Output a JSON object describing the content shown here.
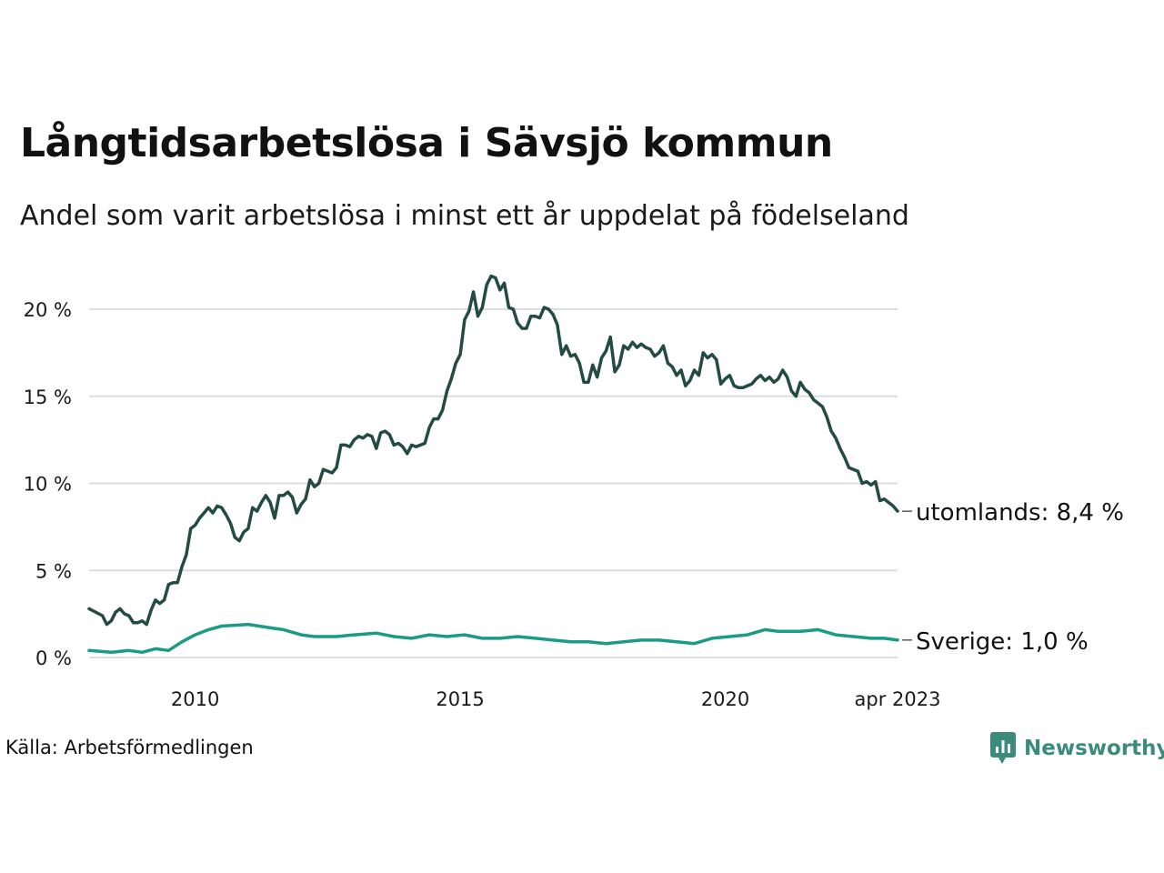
{
  "header": {
    "title": "Långtidsarbetslösa i Sävsjö kommun",
    "subtitle": "Andel som varit arbetslösa i minst ett år uppdelat på födelseland"
  },
  "footer": {
    "source": "Källa: Arbetsförmedlingen",
    "brand": "Newsworthy"
  },
  "colors": {
    "utomlands": "#234b43",
    "sverige": "#1a9b86",
    "grid": "#dddddd",
    "brand": "#3a8b7b"
  },
  "chart_data": {
    "type": "line",
    "title": "Långtidsarbetslösa i Sävsjö kommun",
    "subtitle": "Andel som varit arbetslösa i minst ett år uppdelat på födelseland",
    "xlabel": "",
    "ylabel": "",
    "x_ticks": [
      {
        "label": "2010",
        "t": 2010.0
      },
      {
        "label": "2015",
        "t": 2015.0
      },
      {
        "label": "2020",
        "t": 2020.0
      },
      {
        "label": "apr 2023",
        "t": 2023.25
      }
    ],
    "y_ticks": [
      {
        "label": "0 %",
        "v": 0
      },
      {
        "label": "5 %",
        "v": 5
      },
      {
        "label": "10 %",
        "v": 10
      },
      {
        "label": "15 %",
        "v": 15
      },
      {
        "label": "20 %",
        "v": 20
      }
    ],
    "ylim": [
      0,
      22
    ],
    "xlim": [
      "2008-01",
      "2023-04"
    ],
    "grid": true,
    "series": [
      {
        "name": "utomlands",
        "end_label": "utomlands: 8,4 %",
        "color": "#234b43",
        "points": [
          [
            "2008-01",
            2.8
          ],
          [
            "2008-04",
            2.4
          ],
          [
            "2008-05",
            1.9
          ],
          [
            "2008-06",
            2.1
          ],
          [
            "2008-07",
            2.6
          ],
          [
            "2008-08",
            2.8
          ],
          [
            "2008-09",
            2.5
          ],
          [
            "2008-10",
            2.4
          ],
          [
            "2008-11",
            2.0
          ],
          [
            "2008-12",
            2.0
          ],
          [
            "2009-01",
            2.1
          ],
          [
            "2009-02",
            1.9
          ],
          [
            "2009-03",
            2.7
          ],
          [
            "2009-04",
            3.3
          ],
          [
            "2009-05",
            3.1
          ],
          [
            "2009-06",
            3.3
          ],
          [
            "2009-07",
            4.2
          ],
          [
            "2009-08",
            4.3
          ],
          [
            "2009-09",
            4.3
          ],
          [
            "2009-10",
            5.2
          ],
          [
            "2009-11",
            5.9
          ],
          [
            "2009-12",
            7.4
          ],
          [
            "2010-01",
            7.6
          ],
          [
            "2010-02",
            8.0
          ],
          [
            "2010-03",
            8.3
          ],
          [
            "2010-04",
            8.6
          ],
          [
            "2010-05",
            8.3
          ],
          [
            "2010-06",
            8.7
          ],
          [
            "2010-07",
            8.6
          ],
          [
            "2010-08",
            8.2
          ],
          [
            "2010-09",
            7.7
          ],
          [
            "2010-10",
            6.9
          ],
          [
            "2010-11",
            6.7
          ],
          [
            "2010-12",
            7.2
          ],
          [
            "2011-01",
            7.4
          ],
          [
            "2011-02",
            8.6
          ],
          [
            "2011-03",
            8.4
          ],
          [
            "2011-04",
            8.9
          ],
          [
            "2011-05",
            9.3
          ],
          [
            "2011-06",
            8.9
          ],
          [
            "2011-07",
            8.0
          ],
          [
            "2011-08",
            9.3
          ],
          [
            "2011-09",
            9.3
          ],
          [
            "2011-10",
            9.5
          ],
          [
            "2011-11",
            9.2
          ],
          [
            "2011-12",
            8.3
          ],
          [
            "2012-01",
            8.8
          ],
          [
            "2012-02",
            9.1
          ],
          [
            "2012-03",
            10.2
          ],
          [
            "2012-04",
            9.8
          ],
          [
            "2012-05",
            10.0
          ],
          [
            "2012-06",
            10.8
          ],
          [
            "2012-07",
            10.7
          ],
          [
            "2012-08",
            10.6
          ],
          [
            "2012-09",
            10.9
          ],
          [
            "2012-10",
            12.2
          ],
          [
            "2012-11",
            12.2
          ],
          [
            "2012-12",
            12.1
          ],
          [
            "2013-01",
            12.5
          ],
          [
            "2013-02",
            12.7
          ],
          [
            "2013-03",
            12.6
          ],
          [
            "2013-04",
            12.8
          ],
          [
            "2013-05",
            12.7
          ],
          [
            "2013-06",
            12.0
          ],
          [
            "2013-07",
            12.9
          ],
          [
            "2013-08",
            13.0
          ],
          [
            "2013-09",
            12.8
          ],
          [
            "2013-10",
            12.2
          ],
          [
            "2013-11",
            12.3
          ],
          [
            "2013-12",
            12.1
          ],
          [
            "2014-01",
            11.7
          ],
          [
            "2014-02",
            12.2
          ],
          [
            "2014-03",
            12.1
          ],
          [
            "2014-04",
            12.2
          ],
          [
            "2014-05",
            12.3
          ],
          [
            "2014-06",
            13.2
          ],
          [
            "2014-07",
            13.7
          ],
          [
            "2014-08",
            13.7
          ],
          [
            "2014-09",
            14.2
          ],
          [
            "2014-10",
            15.3
          ],
          [
            "2014-11",
            16.0
          ],
          [
            "2014-12",
            16.9
          ],
          [
            "2015-01",
            17.4
          ],
          [
            "2015-02",
            19.4
          ],
          [
            "2015-03",
            19.9
          ],
          [
            "2015-04",
            21.0
          ],
          [
            "2015-05",
            19.6
          ],
          [
            "2015-06",
            20.1
          ],
          [
            "2015-07",
            21.4
          ],
          [
            "2015-08",
            21.9
          ],
          [
            "2015-09",
            21.8
          ],
          [
            "2015-10",
            21.1
          ],
          [
            "2015-11",
            21.5
          ],
          [
            "2015-12",
            20.1
          ],
          [
            "2016-01",
            20.0
          ],
          [
            "2016-02",
            19.2
          ],
          [
            "2016-03",
            18.9
          ],
          [
            "2016-04",
            18.9
          ],
          [
            "2016-05",
            19.6
          ],
          [
            "2016-06",
            19.6
          ],
          [
            "2016-07",
            19.5
          ],
          [
            "2016-08",
            20.1
          ],
          [
            "2016-09",
            20.0
          ],
          [
            "2016-10",
            19.7
          ],
          [
            "2016-11",
            19.1
          ],
          [
            "2016-12",
            17.4
          ],
          [
            "2017-01",
            17.9
          ],
          [
            "2017-02",
            17.3
          ],
          [
            "2017-03",
            17.4
          ],
          [
            "2017-04",
            16.9
          ],
          [
            "2017-05",
            15.8
          ],
          [
            "2017-06",
            15.8
          ],
          [
            "2017-07",
            16.8
          ],
          [
            "2017-08",
            16.1
          ],
          [
            "2017-09",
            17.2
          ],
          [
            "2017-10",
            17.6
          ],
          [
            "2017-11",
            18.4
          ],
          [
            "2017-12",
            16.4
          ],
          [
            "2018-01",
            16.8
          ],
          [
            "2018-02",
            17.9
          ],
          [
            "2018-03",
            17.7
          ],
          [
            "2018-04",
            18.1
          ],
          [
            "2018-05",
            17.8
          ],
          [
            "2018-06",
            18.0
          ],
          [
            "2018-07",
            17.8
          ],
          [
            "2018-08",
            17.7
          ],
          [
            "2018-09",
            17.3
          ],
          [
            "2018-10",
            17.5
          ],
          [
            "2018-11",
            17.9
          ],
          [
            "2018-12",
            16.9
          ],
          [
            "2019-01",
            16.7
          ],
          [
            "2019-02",
            16.2
          ],
          [
            "2019-03",
            16.5
          ],
          [
            "2019-04",
            15.6
          ],
          [
            "2019-05",
            15.9
          ],
          [
            "2019-06",
            16.5
          ],
          [
            "2019-07",
            16.2
          ],
          [
            "2019-08",
            17.5
          ],
          [
            "2019-09",
            17.2
          ],
          [
            "2019-10",
            17.4
          ],
          [
            "2019-11",
            17.1
          ],
          [
            "2019-12",
            15.7
          ],
          [
            "2020-01",
            16.0
          ],
          [
            "2020-02",
            16.2
          ],
          [
            "2020-03",
            15.6
          ],
          [
            "2020-04",
            15.5
          ],
          [
            "2020-05",
            15.5
          ],
          [
            "2020-06",
            15.6
          ],
          [
            "2020-07",
            15.7
          ],
          [
            "2020-08",
            16.0
          ],
          [
            "2020-09",
            16.2
          ],
          [
            "2020-10",
            15.9
          ],
          [
            "2020-11",
            16.1
          ],
          [
            "2020-12",
            15.8
          ],
          [
            "2021-01",
            16.0
          ],
          [
            "2021-02",
            16.5
          ],
          [
            "2021-03",
            16.1
          ],
          [
            "2021-04",
            15.3
          ],
          [
            "2021-05",
            15.0
          ],
          [
            "2021-06",
            15.8
          ],
          [
            "2021-07",
            15.4
          ],
          [
            "2021-08",
            15.2
          ],
          [
            "2021-09",
            14.8
          ],
          [
            "2021-10",
            14.6
          ],
          [
            "2021-11",
            14.4
          ],
          [
            "2021-12",
            13.8
          ],
          [
            "2022-01",
            13.0
          ],
          [
            "2022-02",
            12.6
          ],
          [
            "2022-03",
            12.0
          ],
          [
            "2022-04",
            11.5
          ],
          [
            "2022-05",
            10.9
          ],
          [
            "2022-06",
            10.8
          ],
          [
            "2022-07",
            10.7
          ],
          [
            "2022-08",
            10.0
          ],
          [
            "2022-09",
            10.1
          ],
          [
            "2022-10",
            9.9
          ],
          [
            "2022-11",
            10.1
          ],
          [
            "2022-12",
            9.0
          ],
          [
            "2023-01",
            9.1
          ],
          [
            "2023-02",
            8.9
          ],
          [
            "2023-03",
            8.7
          ],
          [
            "2023-04",
            8.4
          ]
        ]
      },
      {
        "name": "Sverige",
        "end_label": "Sverige: 1,0 %",
        "color": "#1a9b86",
        "points": [
          [
            "2008-01",
            0.4
          ],
          [
            "2008-06",
            0.3
          ],
          [
            "2008-10",
            0.4
          ],
          [
            "2009-01",
            0.3
          ],
          [
            "2009-04",
            0.5
          ],
          [
            "2009-07",
            0.4
          ],
          [
            "2009-10",
            0.9
          ],
          [
            "2010-01",
            1.3
          ],
          [
            "2010-04",
            1.6
          ],
          [
            "2010-07",
            1.8
          ],
          [
            "2011-01",
            1.9
          ],
          [
            "2011-06",
            1.7
          ],
          [
            "2011-09",
            1.6
          ],
          [
            "2012-01",
            1.3
          ],
          [
            "2012-04",
            1.2
          ],
          [
            "2012-09",
            1.2
          ],
          [
            "2013-01",
            1.3
          ],
          [
            "2013-06",
            1.4
          ],
          [
            "2013-10",
            1.2
          ],
          [
            "2014-02",
            1.1
          ],
          [
            "2014-06",
            1.3
          ],
          [
            "2014-10",
            1.2
          ],
          [
            "2015-02",
            1.3
          ],
          [
            "2015-06",
            1.1
          ],
          [
            "2015-10",
            1.1
          ],
          [
            "2016-02",
            1.2
          ],
          [
            "2016-06",
            1.1
          ],
          [
            "2016-10",
            1.0
          ],
          [
            "2017-02",
            0.9
          ],
          [
            "2017-06",
            0.9
          ],
          [
            "2017-10",
            0.8
          ],
          [
            "2018-02",
            0.9
          ],
          [
            "2018-06",
            1.0
          ],
          [
            "2018-10",
            1.0
          ],
          [
            "2019-02",
            0.9
          ],
          [
            "2019-06",
            0.8
          ],
          [
            "2019-10",
            1.1
          ],
          [
            "2020-02",
            1.2
          ],
          [
            "2020-06",
            1.3
          ],
          [
            "2020-10",
            1.6
          ],
          [
            "2021-01",
            1.5
          ],
          [
            "2021-06",
            1.5
          ],
          [
            "2021-10",
            1.6
          ],
          [
            "2022-02",
            1.3
          ],
          [
            "2022-06",
            1.2
          ],
          [
            "2022-10",
            1.1
          ],
          [
            "2023-01",
            1.1
          ],
          [
            "2023-04",
            1.0
          ]
        ]
      }
    ]
  }
}
